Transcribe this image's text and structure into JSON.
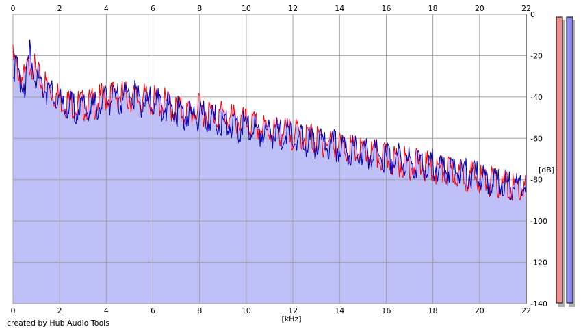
{
  "footer": {
    "credit": "created by Hub Audio Tools"
  },
  "colors": {
    "background": "#ffffff",
    "plot_fill": "#c0c0f8",
    "left_channel": "#ff0000",
    "right_channel": "#0000c0",
    "grid": "#a0a0a0",
    "meter_left": "#f08c8c",
    "meter_right": "#8c8cf0"
  },
  "chart_data": {
    "type": "line",
    "xlabel": "[kHz]",
    "ylabel": "[dB]",
    "xlim": [
      0,
      22
    ],
    "ylim": [
      -140,
      0
    ],
    "x_ticks": [
      0,
      2,
      4,
      6,
      8,
      10,
      12,
      14,
      16,
      18,
      20,
      22
    ],
    "y_ticks": [
      0,
      -20,
      -40,
      -60,
      -80,
      -100,
      -120,
      -140
    ],
    "x_tick_labels": [
      "0",
      "2",
      "4",
      "6",
      "8",
      "10",
      "12",
      "14",
      "16",
      "18",
      "20",
      "22"
    ],
    "y_tick_labels": [
      "0",
      "-20",
      "-40",
      "-60",
      "-80",
      "-100",
      "-120",
      "-140"
    ],
    "grid": true,
    "x": [
      0,
      0.25,
      0.5,
      0.75,
      1.0,
      1.25,
      1.5,
      2,
      2.5,
      3,
      3.5,
      4,
      4.5,
      5,
      5.5,
      6,
      6.5,
      7,
      7.5,
      8,
      8.5,
      9,
      9.5,
      10,
      10.5,
      11,
      11.5,
      12,
      12.5,
      13,
      13.5,
      14,
      14.5,
      15,
      15.5,
      16,
      16.5,
      17,
      17.5,
      18,
      18.5,
      19,
      19.5,
      20,
      20.5,
      21,
      21.5,
      22
    ],
    "series": [
      {
        "values": [
          -22,
          -28,
          -32,
          -21,
          -30,
          -33,
          -35,
          -41,
          -43,
          -44,
          -43,
          -40,
          -39,
          -40,
          -41,
          -42,
          -43,
          -46,
          -48,
          -46,
          -48,
          -49,
          -51,
          -53,
          -55,
          -56,
          -57,
          -58,
          -59,
          -61,
          -62,
          -64,
          -66,
          -67,
          -68,
          -70,
          -71,
          -72,
          -73,
          -75,
          -76,
          -77,
          -78,
          -79,
          -81,
          -83,
          -84,
          -85
        ]
      },
      {
        "values": [
          -23,
          -30,
          -34,
          -18,
          -31,
          -34,
          -37,
          -43,
          -45,
          -46,
          -45,
          -42,
          -41,
          -38,
          -42,
          -43,
          -44,
          -47,
          -49,
          -49,
          -51,
          -52,
          -54,
          -55,
          -56,
          -57,
          -58,
          -59,
          -61,
          -63,
          -63,
          -64,
          -66,
          -67,
          -68,
          -69,
          -70,
          -71,
          -72,
          -73,
          -75,
          -76,
          -77,
          -79,
          -80,
          -81,
          -82,
          -83
        ]
      }
    ],
    "meters": [
      {
        "channel": "left",
        "level_db": -140
      },
      {
        "channel": "right",
        "level_db": -140
      }
    ]
  }
}
